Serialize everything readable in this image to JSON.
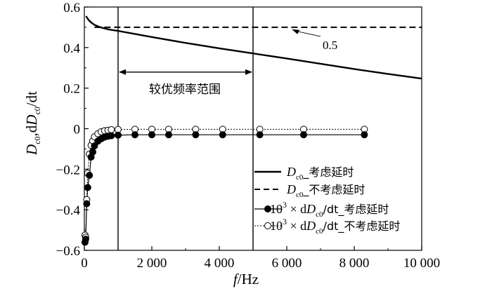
{
  "chart_data": {
    "type": "line",
    "xlabel": "f/Hz",
    "ylabel": "Dc0,dDc0/dt",
    "xlim": [
      0,
      10000
    ],
    "ylim": [
      -0.6,
      0.6
    ],
    "xticks": [
      0,
      2000,
      4000,
      6000,
      8000,
      10000
    ],
    "xtick_labels": [
      "0",
      "2 000",
      "4 000",
      "6 000",
      "8 000",
      "10 000"
    ],
    "yticks": [
      0.6,
      0.4,
      0.2,
      0,
      -0.2,
      -0.4,
      -0.6
    ],
    "ytick_labels": [
      "0.6",
      "0.4",
      "0.2",
      "0",
      "−0.2",
      "−0.4",
      "−0.6"
    ],
    "grid": false,
    "legend_position": "bottom-right",
    "series": [
      {
        "name": "Dc0_考虑延时",
        "style": "solid",
        "x": [
          50,
          100,
          150,
          200,
          300,
          400,
          500,
          700,
          1000,
          1500,
          2000,
          3000,
          4000,
          5000,
          6000,
          7000,
          8000,
          9000,
          10000
        ],
        "y": [
          0.555,
          0.542,
          0.532,
          0.524,
          0.512,
          0.505,
          0.499,
          0.49,
          0.482,
          0.467,
          0.452,
          0.423,
          0.396,
          0.371,
          0.346,
          0.32,
          0.294,
          0.27,
          0.247
        ]
      },
      {
        "name": "Dc0_不考虑延时",
        "style": "dashed",
        "x": [
          300,
          10000
        ],
        "y": [
          0.5,
          0.5
        ]
      },
      {
        "name": "10³ × dDc0/dt_考虑延时",
        "style": "solid-filled-markers",
        "x": [
          20,
          40,
          70,
          100,
          150,
          200,
          250,
          300,
          400,
          500,
          600,
          700,
          800,
          1000,
          1500,
          2000,
          2500,
          3300,
          4100,
          5200,
          6500,
          8300
        ],
        "y": [
          -0.56,
          -0.545,
          -0.37,
          -0.29,
          -0.23,
          -0.14,
          -0.115,
          -0.085,
          -0.062,
          -0.05,
          -0.042,
          -0.037,
          -0.035,
          -0.032,
          -0.03,
          -0.03,
          -0.03,
          -0.03,
          -0.03,
          -0.03,
          -0.03,
          -0.03
        ]
      },
      {
        "name": "10³ × dDc0/dt_不考虑延时",
        "style": "dotted-open-markers",
        "x": [
          20,
          40,
          70,
          100,
          150,
          200,
          250,
          300,
          400,
          500,
          600,
          700,
          800,
          1000,
          1500,
          2000,
          2500,
          3300,
          4100,
          5200,
          6500,
          8300
        ],
        "y": [
          -0.525,
          -0.535,
          -0.35,
          -0.22,
          -0.125,
          -0.082,
          -0.06,
          -0.04,
          -0.025,
          -0.015,
          -0.01,
          -0.008,
          -0.005,
          -0.004,
          -0.003,
          -0.003,
          -0.003,
          -0.003,
          -0.003,
          -0.003,
          -0.003,
          -0.003
        ]
      }
    ],
    "vlines": [
      1000,
      5000
    ],
    "annotations": {
      "range_label": "较优频率范围",
      "range_from": 1000,
      "range_to": 5000,
      "range_y": 0.255,
      "value_label": "0.5"
    },
    "legend": {
      "entries": [
        {
          "main": "D",
          "sub": "c0",
          "suffix": "_考虑延时"
        },
        {
          "main": "D",
          "sub": "c0",
          "suffix": "_不考虑延时"
        },
        {
          "prefix": "10",
          "sup": "3",
          "mid": " × d",
          "main": "D",
          "sub": "c0",
          "suffix": "/dt_考虑延时"
        },
        {
          "prefix": "10",
          "sup": "3",
          "mid": " × d",
          "main": "D",
          "sub": "c0",
          "suffix": "/dt_不考虑延时"
        }
      ]
    }
  }
}
